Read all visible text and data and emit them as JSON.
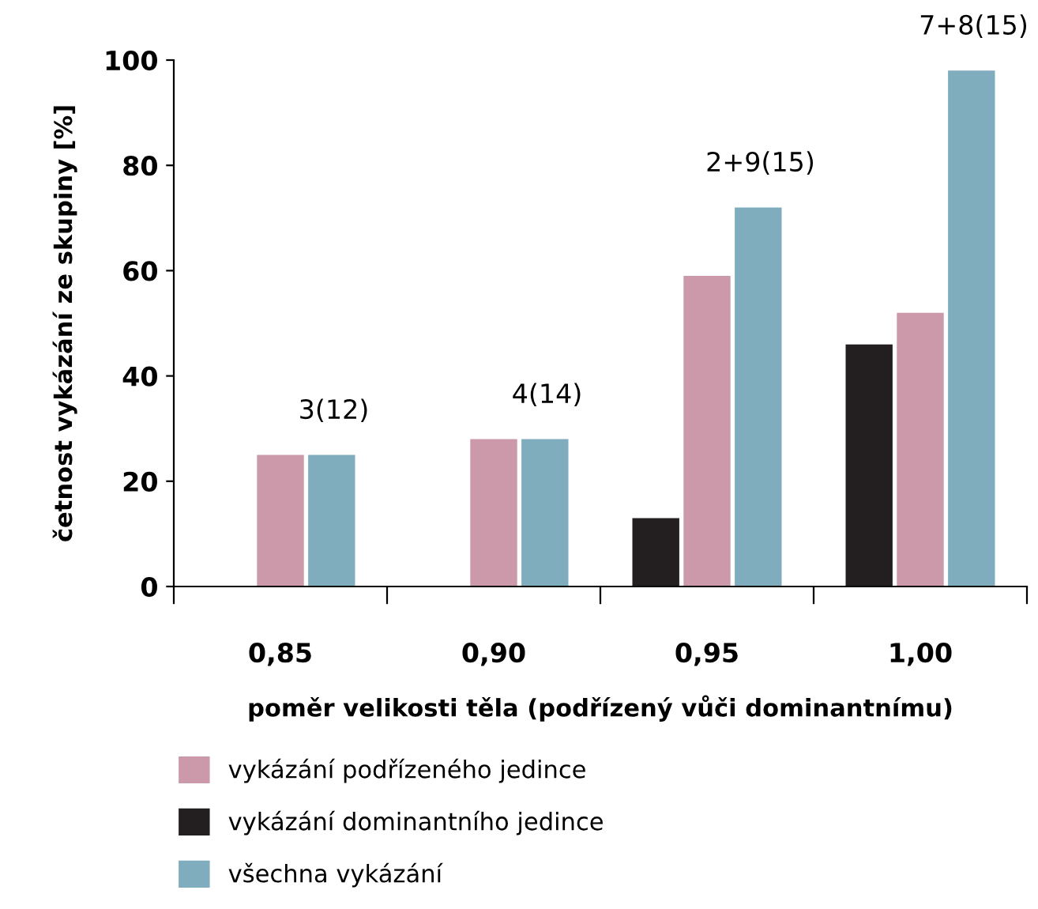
{
  "chart_data": {
    "type": "bar",
    "xlabel": "poměr velikosti těla (podřízený vůči dominantnímu)",
    "ylabel": "četnost vykázání ze skupiny [%]",
    "categories": [
      "0,85",
      "0,90",
      "0,95",
      "1,00"
    ],
    "series": [
      {
        "name": "vykázání dominantního jedince",
        "color": "#231f20",
        "values": [
          null,
          null,
          13,
          46
        ]
      },
      {
        "name": "vykázání podřízeného jedince",
        "color": "#cc99ab",
        "values": [
          25,
          28,
          59,
          52
        ]
      },
      {
        "name": "všechna vykázání",
        "color": "#80adbd",
        "values": [
          25,
          28,
          72,
          98
        ]
      }
    ],
    "ylim": [
      0,
      100
    ],
    "yticks": [
      0,
      20,
      40,
      60,
      80,
      100
    ],
    "grid": false,
    "legend": "bottom",
    "annotations": [
      "3(12)",
      "4(14)",
      "2+9(15)",
      "7+8(15)"
    ]
  }
}
